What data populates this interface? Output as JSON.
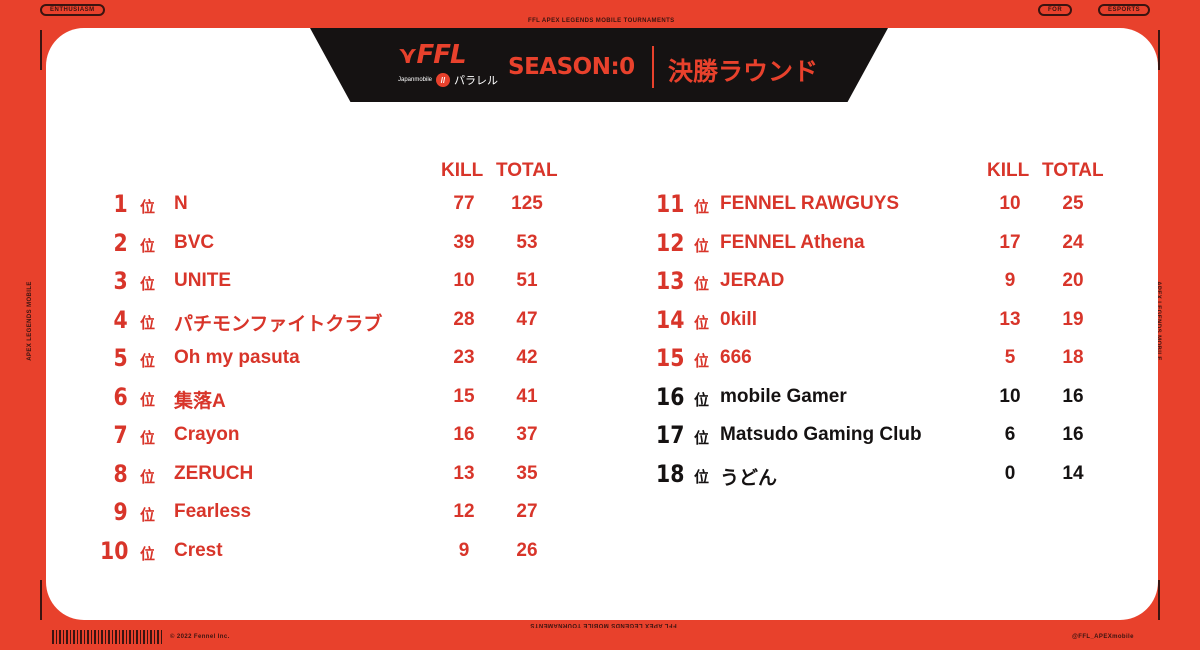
{
  "frame": {
    "tag_left": "ENTHUSIASM",
    "tag_right1": "FOR",
    "tag_right2": "ESPORTS",
    "top_caption": "FFL APEX LEGENDS MOBILE TOURNAMENTS",
    "bottom_caption": "FFL APEX LEGENDS MOBILE TOURNAMENTS",
    "side_left": "APEX LEGENDS MOBILE",
    "side_right": "APEX LEGENDS MOBILE",
    "copyright": "© 2022 Fennel Inc.",
    "handle": "@FFL_APEXmobile"
  },
  "header": {
    "logo": "FFL",
    "logo_brand": "Japanmobile",
    "logo_badge": "//",
    "logo_sub": "パラレル",
    "season": "SEASON:0",
    "round": "決勝ラウンド"
  },
  "columns": {
    "kill": "KILL",
    "total": "TOTAL"
  },
  "rank_suffix": "位",
  "colors": {
    "accent": "#e8412c",
    "text_red": "#d8352a",
    "text_black": "#151212",
    "header_bg": "#151212"
  },
  "standings_left": [
    {
      "rank": "1",
      "team": "N",
      "kill": "77",
      "total": "125"
    },
    {
      "rank": "2",
      "team": "BVC",
      "kill": "39",
      "total": "53"
    },
    {
      "rank": "3",
      "team": "UNITE",
      "kill": "10",
      "total": "51"
    },
    {
      "rank": "4",
      "team": "パチモンファイトクラブ",
      "kill": "28",
      "total": "47"
    },
    {
      "rank": "5",
      "team": "Oh my pasuta",
      "kill": "23",
      "total": "42"
    },
    {
      "rank": "6",
      "team": "集落A",
      "kill": "15",
      "total": "41"
    },
    {
      "rank": "7",
      "team": "Crayon",
      "kill": "16",
      "total": "37"
    },
    {
      "rank": "8",
      "team": "ZERUCH",
      "kill": "13",
      "total": "35"
    },
    {
      "rank": "9",
      "team": "Fearless",
      "kill": "12",
      "total": "27"
    },
    {
      "rank": "10",
      "team": "Crest",
      "kill": "9",
      "total": "26"
    }
  ],
  "standings_right": [
    {
      "rank": "11",
      "team": "FENNEL RAWGUYS",
      "kill": "10",
      "total": "25",
      "color": "red"
    },
    {
      "rank": "12",
      "team": "FENNEL Athena",
      "kill": "17",
      "total": "24",
      "color": "red"
    },
    {
      "rank": "13",
      "team": "JERAD",
      "kill": "9",
      "total": "20",
      "color": "red"
    },
    {
      "rank": "14",
      "team": "0kill",
      "kill": "13",
      "total": "19",
      "color": "red"
    },
    {
      "rank": "15",
      "team": "666",
      "kill": "5",
      "total": "18",
      "color": "red"
    },
    {
      "rank": "16",
      "team": "mobile Gamer",
      "kill": "10",
      "total": "16",
      "color": "black"
    },
    {
      "rank": "17",
      "team": "Matsudo Gaming Club",
      "kill": "6",
      "total": "16",
      "color": "black"
    },
    {
      "rank": "18",
      "team": "うどん",
      "kill": "0",
      "total": "14",
      "color": "black"
    }
  ]
}
